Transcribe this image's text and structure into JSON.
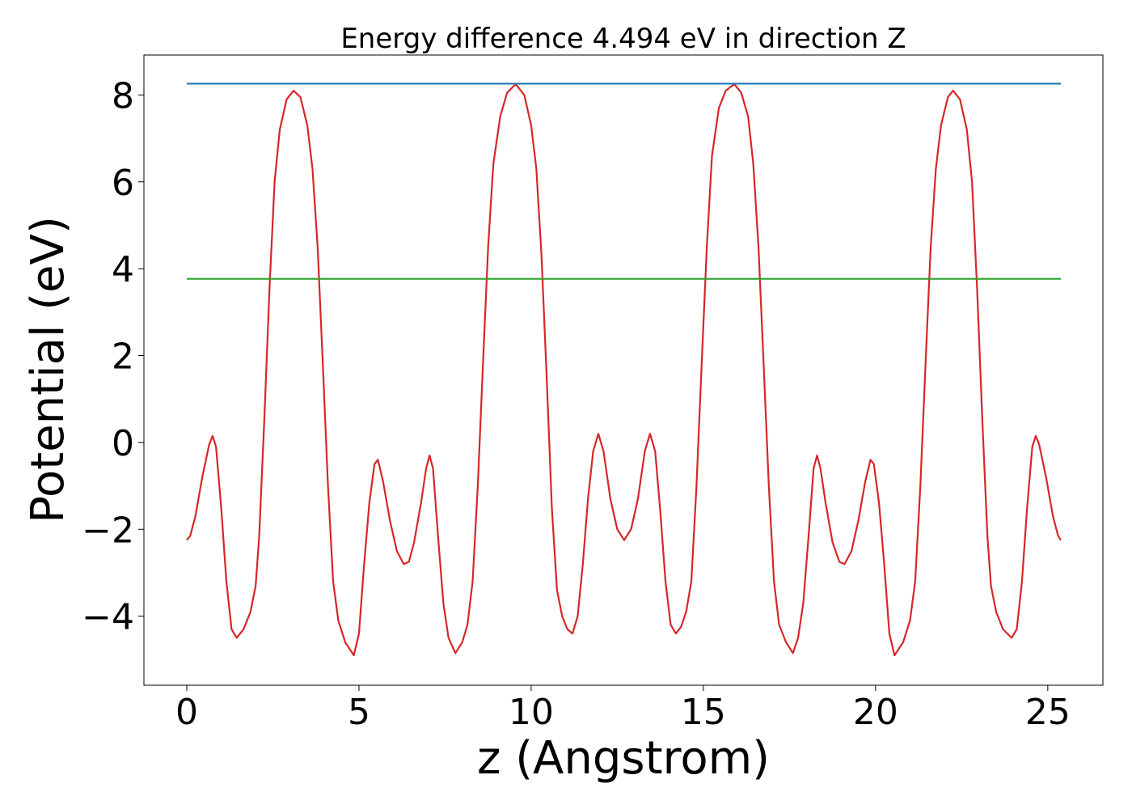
{
  "chart_data": {
    "type": "line",
    "title": "Energy difference 4.494 eV in direction Z",
    "xlabel": "z (Angstrom)",
    "ylabel": "Potential (eV)",
    "xlim": [
      -1.244,
      26.6
    ],
    "ylim": [
      -5.59,
      8.92
    ],
    "xticks": [
      0,
      5,
      10,
      15,
      20,
      25
    ],
    "yticks": [
      {
        "value": -4,
        "label": "−4"
      },
      {
        "value": -2,
        "label": "−2"
      },
      0,
      2,
      4,
      6,
      8
    ],
    "grid": false,
    "series": [
      {
        "color": "#d62728",
        "x": [
          0,
          0.1,
          0.25,
          0.45,
          0.65,
          0.75,
          0.85,
          1.0,
          1.15,
          1.3,
          1.45,
          1.65,
          1.85,
          2.0,
          2.1,
          2.25,
          2.4,
          2.55,
          2.7,
          2.9,
          3.1,
          3.3,
          3.5,
          3.65,
          3.8,
          3.95,
          4.1,
          4.25,
          4.4,
          4.6,
          4.85,
          5.0,
          5.15,
          5.3,
          5.45,
          5.55,
          5.7,
          5.9,
          6.1,
          6.3,
          6.45,
          6.6,
          6.8,
          6.95,
          7.05,
          7.15,
          7.3,
          7.45,
          7.6,
          7.8,
          8.0,
          8.15,
          8.3,
          8.45,
          8.6,
          8.75,
          8.9,
          9.1,
          9.3,
          9.55,
          9.8,
          10.0,
          10.15,
          10.3,
          10.45,
          10.6,
          10.75,
          10.9,
          11.05,
          11.2,
          11.35,
          11.5,
          11.65,
          11.8,
          11.95,
          12.1,
          12.3,
          12.5,
          12.7,
          12.9,
          13.1,
          13.3,
          13.45,
          13.6,
          13.75,
          13.9,
          14.05,
          14.2,
          14.35,
          14.5,
          14.65,
          14.8,
          14.95,
          15.1,
          15.25,
          15.45,
          15.65,
          15.9,
          16.1,
          16.3,
          16.45,
          16.6,
          16.75,
          16.9,
          17.05,
          17.2,
          17.4,
          17.6,
          17.75,
          17.9,
          18.05,
          18.2,
          18.3,
          18.4,
          18.55,
          18.75,
          18.95,
          19.1,
          19.3,
          19.5,
          19.7,
          19.85,
          19.95,
          20.1,
          20.25,
          20.4,
          20.55,
          20.8,
          21.0,
          21.15,
          21.3,
          21.45,
          21.6,
          21.75,
          21.9,
          22.1,
          22.25,
          22.45,
          22.65,
          22.8,
          22.95,
          23.1,
          23.25,
          23.35,
          23.5,
          23.7,
          23.95,
          24.1,
          24.25,
          24.4,
          24.55,
          24.65,
          24.75,
          24.95,
          25.15,
          25.3,
          25.38
        ],
        "values": [
          -2.25,
          -2.15,
          -1.7,
          -0.8,
          -0.05,
          0.15,
          -0.1,
          -1.5,
          -3.2,
          -4.3,
          -4.5,
          -4.3,
          -3.9,
          -3.3,
          -2.2,
          0.5,
          3.5,
          6.0,
          7.2,
          7.9,
          8.1,
          7.95,
          7.3,
          6.3,
          4.5,
          1.8,
          -1.0,
          -3.2,
          -4.1,
          -4.6,
          -4.9,
          -4.4,
          -2.8,
          -1.4,
          -0.5,
          -0.4,
          -0.9,
          -1.8,
          -2.5,
          -2.8,
          -2.75,
          -2.3,
          -1.4,
          -0.6,
          -0.3,
          -0.6,
          -2.2,
          -3.7,
          -4.5,
          -4.85,
          -4.6,
          -4.2,
          -3.2,
          -1.0,
          1.8,
          4.5,
          6.4,
          7.5,
          8.05,
          8.25,
          8.0,
          7.3,
          6.3,
          4.3,
          1.5,
          -1.5,
          -3.4,
          -4.0,
          -4.3,
          -4.4,
          -4.0,
          -2.8,
          -1.3,
          -0.2,
          0.2,
          -0.2,
          -1.3,
          -2.0,
          -2.25,
          -2.0,
          -1.3,
          -0.2,
          0.2,
          -0.2,
          -1.6,
          -3.2,
          -4.2,
          -4.4,
          -4.25,
          -3.9,
          -3.2,
          -1.0,
          1.8,
          4.5,
          6.6,
          7.7,
          8.1,
          8.25,
          8.05,
          7.5,
          6.4,
          4.5,
          1.8,
          -1.0,
          -3.2,
          -4.2,
          -4.6,
          -4.85,
          -4.5,
          -3.7,
          -2.2,
          -0.6,
          -0.3,
          -0.6,
          -1.4,
          -2.3,
          -2.75,
          -2.8,
          -2.5,
          -1.8,
          -0.9,
          -0.4,
          -0.5,
          -1.4,
          -2.8,
          -4.4,
          -4.9,
          -4.6,
          -4.1,
          -3.2,
          -1.0,
          1.8,
          4.5,
          6.3,
          7.3,
          7.95,
          8.1,
          7.9,
          7.2,
          6.0,
          3.5,
          0.5,
          -2.2,
          -3.3,
          -3.9,
          -4.3,
          -4.5,
          -4.3,
          -3.2,
          -1.5,
          -0.1,
          0.15,
          -0.05,
          -0.8,
          -1.7,
          -2.15,
          -2.25
        ]
      },
      {
        "color": "#1f77b4",
        "x": [
          0,
          25.38
        ],
        "values": [
          8.26,
          8.26
        ]
      },
      {
        "color": "#2ca02c",
        "x": [
          0,
          25.38
        ],
        "values": [
          3.766,
          3.766
        ]
      }
    ]
  }
}
